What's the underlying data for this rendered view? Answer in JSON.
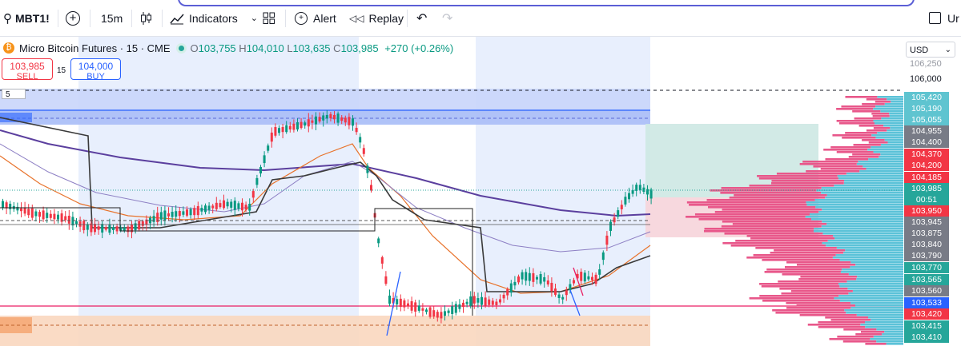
{
  "toolbar": {
    "symbol": "MBT1!",
    "interval": "15m",
    "indicators_label": "Indicators",
    "alert_label": "Alert",
    "replay_label": "Replay",
    "right_label": "Ur"
  },
  "legend": {
    "title": "Micro Bitcoin Futures · 15 · CME",
    "o_label": "O",
    "o": "103,755",
    "h_label": "H",
    "h": "104,010",
    "l_label": "L",
    "l": "103,635",
    "c_label": "C",
    "c": "103,985",
    "change": "+270 (+0.26%)"
  },
  "trade": {
    "sell_price": "103,985",
    "sell_label": "SELL",
    "qty": "15",
    "buy_price": "104,000",
    "buy_label": "BUY"
  },
  "currency": "USD",
  "countdown_input": "5",
  "price_axis": {
    "top_partial": "106,250",
    "round_label": "106,000",
    "labels": [
      {
        "text": "105,420",
        "bg": "#5fc4d0"
      },
      {
        "text": "105,190",
        "bg": "#5fc4d0"
      },
      {
        "text": "105,055",
        "bg": "#5fc4d0"
      },
      {
        "text": "104,955",
        "bg": "#787b86"
      },
      {
        "text": "104,400",
        "bg": "#787b86"
      },
      {
        "text": "104,370",
        "bg": "#f23645"
      },
      {
        "text": "104,200",
        "bg": "#f23645"
      },
      {
        "text": "104,185",
        "bg": "#f23645"
      },
      {
        "text": "103,985",
        "bg": "#26a69a"
      },
      {
        "text": "00:51",
        "bg": "#26a69a"
      },
      {
        "text": "103,950",
        "bg": "#f23645"
      },
      {
        "text": "103,945",
        "bg": "#787b86"
      },
      {
        "text": "103,875",
        "bg": "#787b86"
      },
      {
        "text": "103,840",
        "bg": "#787b86"
      },
      {
        "text": "103,790",
        "bg": "#787b86"
      },
      {
        "text": "103,770",
        "bg": "#26a69a"
      },
      {
        "text": "103,565",
        "bg": "#26a69a"
      },
      {
        "text": "103,560",
        "bg": "#787b86"
      },
      {
        "text": "103,533",
        "bg": "#2962ff"
      },
      {
        "text": "103,420",
        "bg": "#f23645"
      },
      {
        "text": "103,415",
        "bg": "#26a69a"
      },
      {
        "text": "103,410",
        "bg": "#26a69a"
      }
    ]
  },
  "colors": {
    "up": "#089981",
    "down": "#f23645",
    "session_bg": "#e8effd",
    "supply_zone": "#2962ff",
    "demand_zone": "#f5a36b",
    "vp_up": "#5bc2d8",
    "vp_down": "#e8578a",
    "ma_dark": "#5b3f9e",
    "ma_orange": "#e8732c",
    "ma_black": "#3a3a3a"
  }
}
